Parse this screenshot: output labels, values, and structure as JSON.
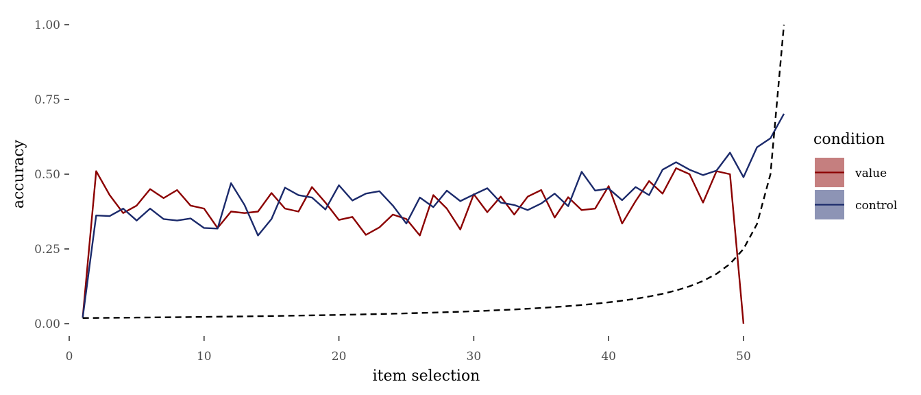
{
  "chart_data": {
    "type": "line",
    "title": "",
    "xlabel": "item selection",
    "ylabel": "accuracy",
    "xlim": [
      0,
      53
    ],
    "ylim": [
      0,
      1
    ],
    "x_ticks": [
      "0",
      "10",
      "20",
      "30",
      "40",
      "50"
    ],
    "y_ticks": [
      "0.00",
      "0.25",
      "0.50",
      "0.75",
      "1.00"
    ],
    "grid": false,
    "legend": {
      "title": "condition",
      "placement": "right",
      "entries": [
        "value",
        "control"
      ]
    },
    "series": [
      {
        "name": "value",
        "color": "#8b0000",
        "x": [
          1,
          2,
          3,
          4,
          5,
          6,
          7,
          8,
          9,
          10,
          11,
          12,
          13,
          14,
          15,
          16,
          17,
          18,
          19,
          20,
          21,
          22,
          23,
          24,
          25,
          26,
          27,
          28,
          29,
          30,
          31,
          32,
          33,
          34,
          35,
          36,
          37,
          38,
          39,
          40,
          41,
          42,
          43,
          44,
          45,
          46,
          47,
          48,
          49,
          50
        ],
        "y": [
          0.02,
          0.51,
          0.43,
          0.37,
          0.395,
          0.45,
          0.42,
          0.447,
          0.395,
          0.385,
          0.32,
          0.375,
          0.37,
          0.375,
          0.437,
          0.385,
          0.375,
          0.457,
          0.405,
          0.347,
          0.357,
          0.297,
          0.322,
          0.365,
          0.35,
          0.295,
          0.43,
          0.385,
          0.315,
          0.433,
          0.373,
          0.425,
          0.365,
          0.425,
          0.447,
          0.355,
          0.423,
          0.38,
          0.385,
          0.46,
          0.335,
          0.41,
          0.477,
          0.435,
          0.52,
          0.5,
          0.405,
          0.51,
          0.5,
          0.0
        ]
      },
      {
        "name": "control",
        "color": "#1b2a6b",
        "x": [
          1,
          2,
          3,
          4,
          5,
          6,
          7,
          8,
          9,
          10,
          11,
          12,
          13,
          14,
          15,
          16,
          17,
          18,
          19,
          20,
          21,
          22,
          23,
          24,
          25,
          26,
          27,
          28,
          29,
          30,
          31,
          32,
          33,
          34,
          35,
          36,
          37,
          38,
          39,
          40,
          41,
          42,
          43,
          44,
          45,
          46,
          47,
          48,
          49,
          50,
          51,
          52,
          53
        ],
        "y": [
          0.02,
          0.362,
          0.36,
          0.385,
          0.345,
          0.385,
          0.35,
          0.345,
          0.352,
          0.32,
          0.318,
          0.47,
          0.397,
          0.295,
          0.35,
          0.455,
          0.43,
          0.422,
          0.382,
          0.463,
          0.412,
          0.435,
          0.443,
          0.395,
          0.335,
          0.422,
          0.39,
          0.445,
          0.41,
          0.432,
          0.453,
          0.405,
          0.397,
          0.38,
          0.402,
          0.435,
          0.393,
          0.508,
          0.445,
          0.452,
          0.413,
          0.457,
          0.43,
          0.515,
          0.54,
          0.515,
          0.497,
          0.512,
          0.572,
          0.49,
          0.59,
          0.62,
          0.702
        ]
      },
      {
        "name": "",
        "style": "dashed",
        "color": "#000000",
        "x": [
          1,
          2,
          3,
          4,
          5,
          6,
          7,
          8,
          9,
          10,
          11,
          12,
          13,
          14,
          15,
          16,
          17,
          18,
          19,
          20,
          21,
          22,
          23,
          24,
          25,
          26,
          27,
          28,
          29,
          30,
          31,
          32,
          33,
          34,
          35,
          36,
          37,
          38,
          39,
          40,
          41,
          42,
          43,
          44,
          45,
          46,
          47,
          48,
          49,
          50,
          51,
          52,
          53
        ],
        "y": [
          0.0189,
          0.0192,
          0.0196,
          0.02,
          0.0204,
          0.0208,
          0.0213,
          0.0217,
          0.0222,
          0.0227,
          0.0233,
          0.0238,
          0.0244,
          0.025,
          0.0256,
          0.0263,
          0.027,
          0.0278,
          0.0286,
          0.0294,
          0.0303,
          0.0313,
          0.0323,
          0.0333,
          0.0345,
          0.0357,
          0.037,
          0.0385,
          0.04,
          0.0417,
          0.0435,
          0.0455,
          0.0476,
          0.05,
          0.0526,
          0.0556,
          0.0588,
          0.0625,
          0.0667,
          0.0714,
          0.0769,
          0.0833,
          0.0909,
          0.1,
          0.1111,
          0.125,
          0.1429,
          0.1667,
          0.2,
          0.25,
          0.3333,
          0.5,
          1.0
        ]
      }
    ]
  }
}
